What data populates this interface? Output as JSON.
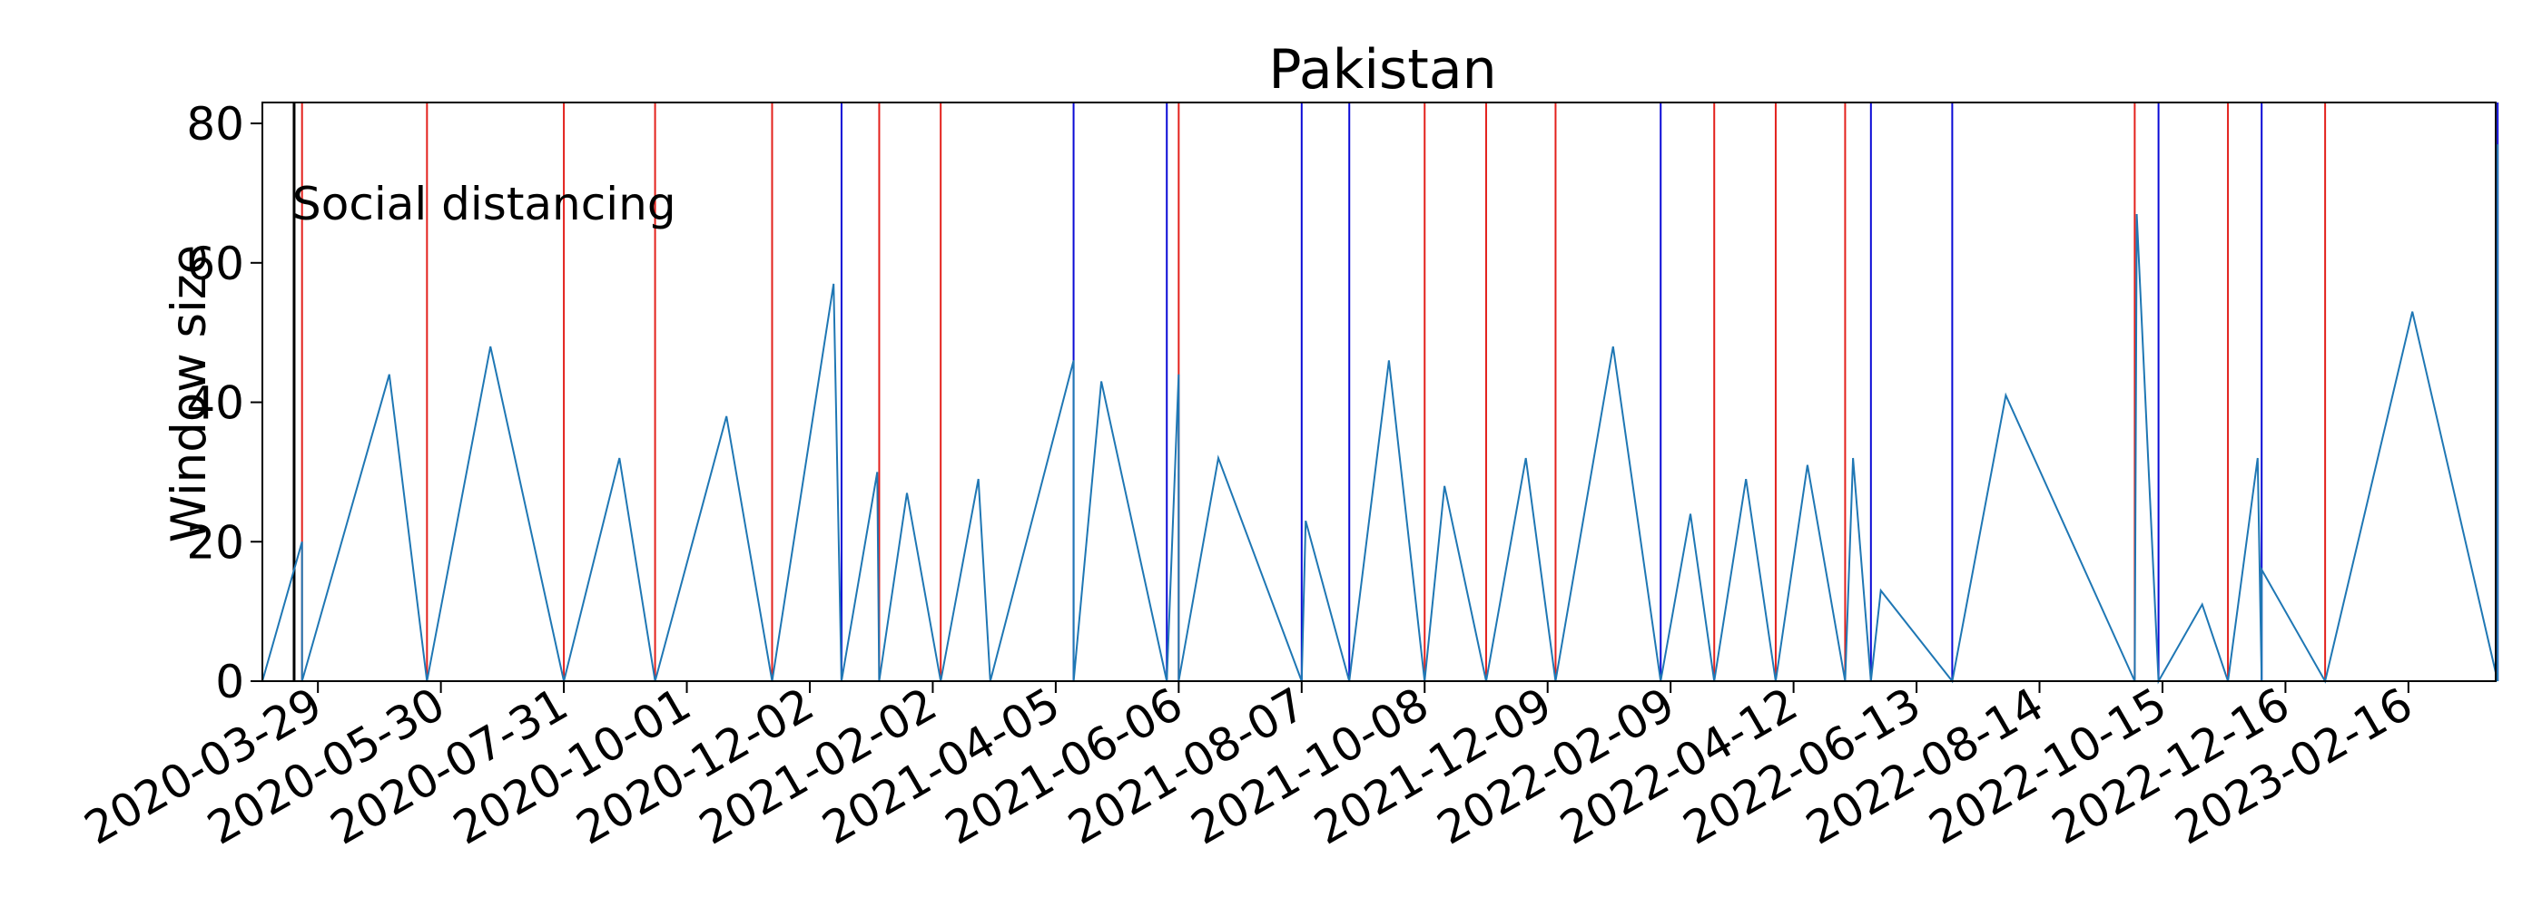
{
  "chart_data": {
    "type": "line",
    "title": "Pakistan",
    "xlabel": "",
    "ylabel": "Window size",
    "x_type": "date",
    "xlim": [
      "2020-03-01",
      "2023-04-01"
    ],
    "ylim": [
      0,
      83
    ],
    "y_ticks": [
      0,
      20,
      40,
      60,
      80
    ],
    "x_ticks": [
      "2020-03-29",
      "2020-05-30",
      "2020-07-31",
      "2020-10-01",
      "2020-12-02",
      "2021-02-02",
      "2021-04-05",
      "2021-06-06",
      "2021-08-07",
      "2021-10-08",
      "2021-12-09",
      "2022-02-09",
      "2022-04-12",
      "2022-06-13",
      "2022-08-14",
      "2022-10-15",
      "2022-12-16",
      "2023-02-16"
    ],
    "grid": false,
    "colors": {
      "series": "#1f77b4",
      "red_marker": "#e3211c",
      "blue_marker": "#0a0ad6",
      "intervention": "#000000"
    },
    "intervention": {
      "label": "Social distancing",
      "date": "2020-03-17"
    },
    "change_points_red": [
      "2020-03-21",
      "2020-05-23",
      "2020-07-31",
      "2020-09-15",
      "2020-11-13",
      "2021-01-06",
      "2021-02-06",
      "2021-06-06",
      "2021-10-08",
      "2021-11-08",
      "2021-12-13",
      "2022-03-03",
      "2022-04-03",
      "2022-05-08",
      "2022-10-01",
      "2022-11-17",
      "2023-01-05"
    ],
    "change_points_blue": [
      "2020-12-18",
      "2021-04-14",
      "2021-05-31",
      "2021-08-07",
      "2021-08-31",
      "2022-02-04",
      "2022-05-21",
      "2022-07-01",
      "2022-10-13",
      "2022-12-04",
      "2023-04-02"
    ],
    "series": [
      {
        "x": [
          "2020-03-01",
          "2020-03-21",
          "2020-03-21",
          "2020-05-04",
          "2020-05-23",
          "2020-06-24",
          "2020-07-31",
          "2020-08-28",
          "2020-09-15",
          "2020-10-21",
          "2020-11-13",
          "2020-12-14",
          "2020-12-18",
          "2021-01-05",
          "2021-01-06",
          "2021-01-20",
          "2021-02-06",
          "2021-02-25",
          "2021-03-03",
          "2021-04-14",
          "2021-04-14",
          "2021-04-28",
          "2021-05-31",
          "2021-06-06",
          "2021-06-06",
          "2021-06-26",
          "2021-08-07",
          "2021-08-09",
          "2021-08-31",
          "2021-09-20",
          "2021-10-08",
          "2021-10-18",
          "2021-11-08",
          "2021-11-28",
          "2021-12-13",
          "2022-01-11",
          "2022-02-04",
          "2022-02-19",
          "2022-03-03",
          "2022-03-19",
          "2022-04-03",
          "2022-04-19",
          "2022-05-08",
          "2022-05-12",
          "2022-05-21",
          "2022-05-26",
          "2022-07-01",
          "2022-07-28",
          "2022-10-01",
          "2022-10-02",
          "2022-10-13",
          "2022-11-04",
          "2022-11-17",
          "2022-12-02",
          "2022-12-04",
          "2022-12-04",
          "2023-01-05",
          "2023-02-18",
          "2023-04-02",
          "2023-04-02"
        ],
        "y": [
          0,
          20,
          0,
          44,
          0,
          48,
          0,
          32,
          0,
          38,
          0,
          57,
          0,
          30,
          0,
          27,
          0,
          29,
          0,
          46,
          0,
          43,
          0,
          44,
          0,
          32,
          0,
          23,
          0,
          46,
          0,
          28,
          0,
          32,
          0,
          48,
          0,
          24,
          0,
          29,
          0,
          31,
          0,
          32,
          0,
          13,
          0,
          41,
          0,
          67,
          0,
          11,
          0,
          32,
          0,
          16,
          0,
          53,
          0,
          77
        ]
      }
    ]
  }
}
